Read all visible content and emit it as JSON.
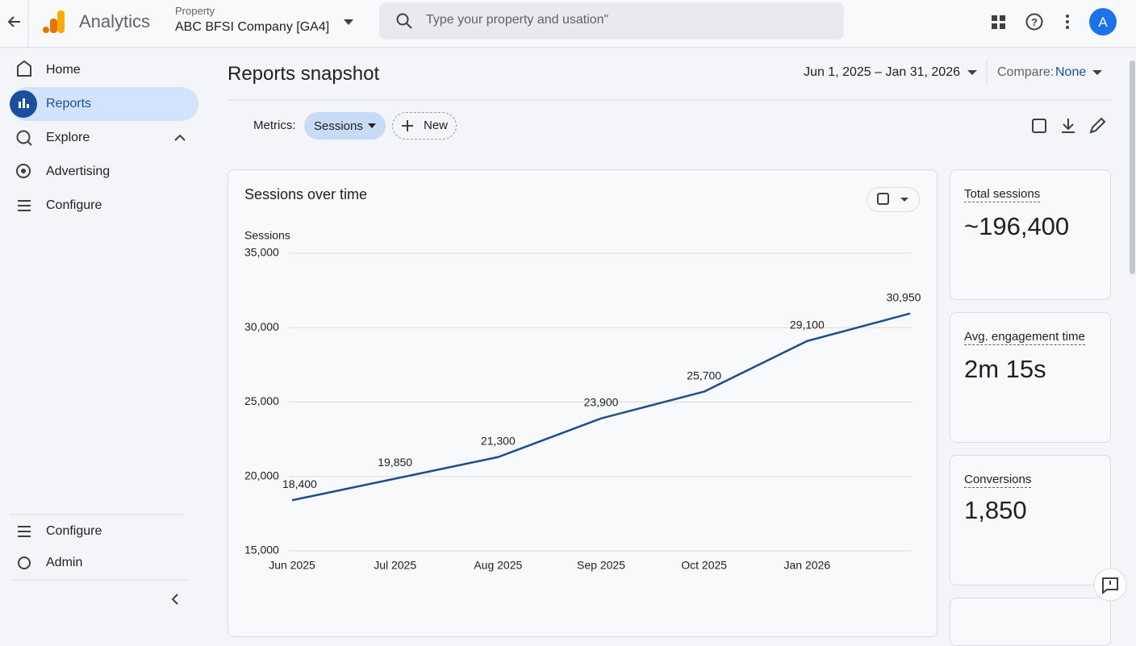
{
  "header": {
    "app": "Analytics",
    "property_label": "Property",
    "property": "ABC BFSI Company [GA4]",
    "search_placeholder": "Type your property and usation\"",
    "avatar": "A"
  },
  "nav": {
    "items": [
      "Home",
      "Reports",
      "Explore",
      "Advertising",
      "Configure"
    ],
    "bottom": [
      "Configure",
      "Admin"
    ]
  },
  "page": {
    "title": "Reports snapshot",
    "date_range": "Jun 1, 2025 – Jan 31, 2026",
    "compare_label": "Compare:",
    "compare_value": "None",
    "metrics_label": "Metrics:",
    "metric": "Sessions",
    "new": "New"
  },
  "chart_data": {
    "type": "line",
    "title": "Sessions over time",
    "y_label": "Sessions",
    "categories": [
      "Jun 2025",
      "Jul 2025",
      "Aug 2025",
      "Sep 2025",
      "Oct 2025",
      "Jan 2026",
      null
    ],
    "values": [
      18400,
      19850,
      21300,
      23900,
      25700,
      29100,
      30950
    ],
    "value_labels": [
      "18,400",
      "19,850",
      "21,300",
      "23,900",
      "25,700",
      "29,100",
      "30,950"
    ],
    "color": "#1f4e8c",
    "ylim": [
      15000,
      35000
    ],
    "yticks": [
      {
        "value": 15000,
        "label": "15,000"
      },
      {
        "value": 20000,
        "label": "20,000"
      },
      {
        "value": 25000,
        "label": "25,000"
      },
      {
        "value": 30000,
        "label": "30,000"
      },
      {
        "value": 35000,
        "label": "35,000"
      }
    ],
    "grid": true
  },
  "cards": [
    {
      "label": "Total sessions",
      "value": "~196,400"
    },
    {
      "label": "Avg. engagement time",
      "value": "2m 15s"
    },
    {
      "label": "Conversions",
      "value": "1,850"
    }
  ]
}
